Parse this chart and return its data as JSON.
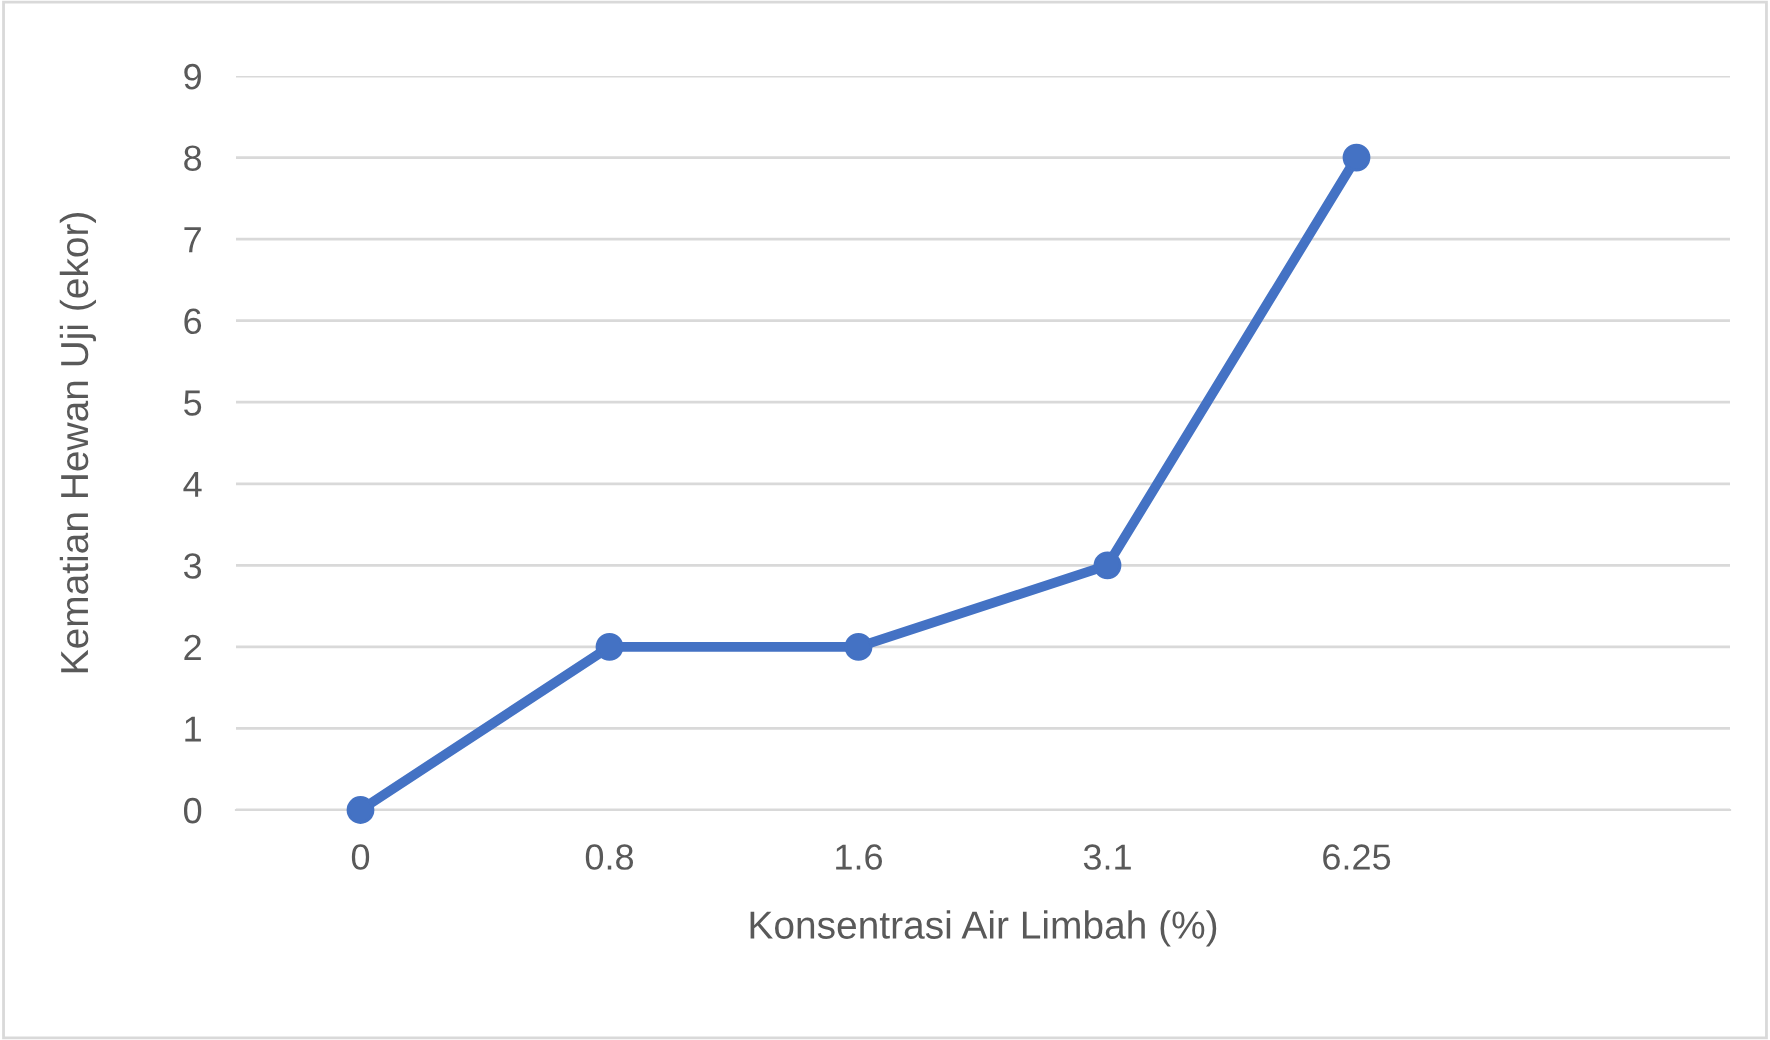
{
  "chart_data": {
    "type": "line",
    "xlabel": "Konsentrasi Air Limbah (%)",
    "ylabel": "Kematian Hewan Uji (ekor)",
    "categories": [
      "0",
      "0.8",
      "1.6",
      "3.1",
      "6.25",
      null
    ],
    "series": [
      {
        "color": "#4472c4",
        "values": [
          0,
          2,
          2,
          3,
          8,
          null
        ]
      }
    ],
    "ylim": [
      0,
      9
    ],
    "yticks": [
      0,
      1,
      2,
      3,
      4,
      5,
      6,
      7,
      8,
      9
    ],
    "grid": "y",
    "marker": "circle",
    "line_style": "solid"
  }
}
